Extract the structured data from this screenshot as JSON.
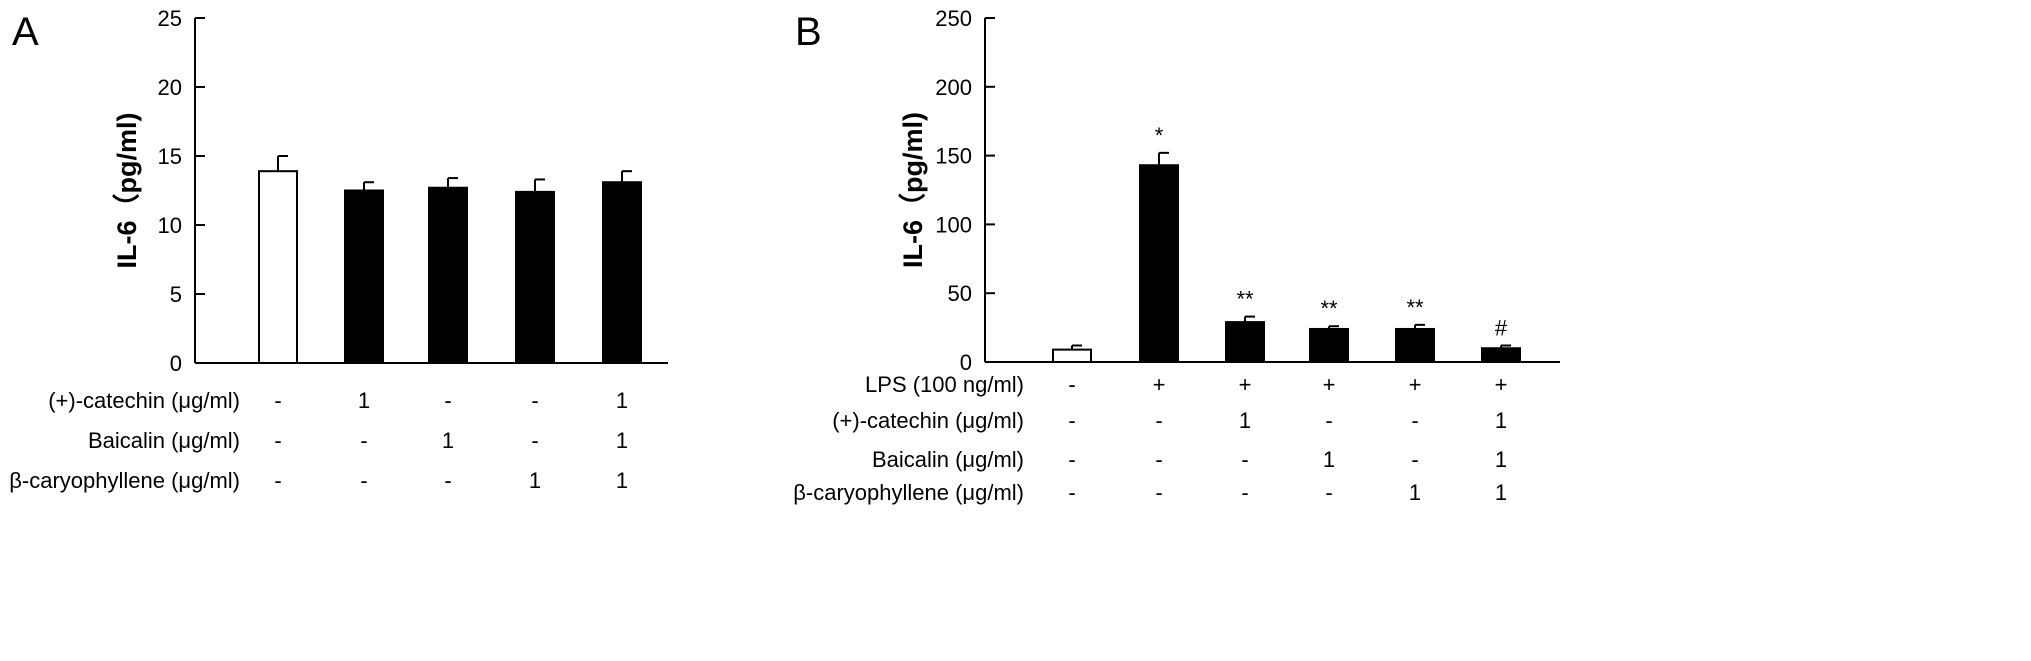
{
  "chart_data": [
    {
      "type": "bar",
      "panel_label": "A",
      "ylabel": "IL-6（pg/ml)",
      "ylim": [
        0,
        25
      ],
      "yticks": [
        0,
        5,
        10,
        15,
        20,
        25
      ],
      "values": [
        13.9,
        12.5,
        12.7,
        12.4,
        13.1
      ],
      "errors": [
        1.1,
        0.6,
        0.7,
        0.9,
        0.8
      ],
      "fills": [
        "#ffffff",
        "#000000",
        "#000000",
        "#000000",
        "#000000"
      ],
      "significance": [
        "",
        "",
        "",
        "",
        ""
      ],
      "conditions": [
        {
          "label": "(+)-catechin (μg/ml)",
          "values": [
            "-",
            "1",
            "-",
            "-",
            "1"
          ]
        },
        {
          "label": "Baicalin (μg/ml)",
          "values": [
            "-",
            "-",
            "1",
            "-",
            "1"
          ]
        },
        {
          "label": "β-caryophyllene (μg/ml)",
          "values": [
            "-",
            "-",
            "-",
            "1",
            "1"
          ]
        }
      ]
    },
    {
      "type": "bar",
      "panel_label": "B",
      "ylabel": "IL-6（pg/ml)",
      "ylim": [
        0,
        250
      ],
      "yticks": [
        0,
        50,
        100,
        150,
        200,
        250
      ],
      "values": [
        9,
        143,
        29,
        24,
        24,
        10
      ],
      "errors": [
        3,
        9,
        4,
        2,
        3,
        2
      ],
      "fills": [
        "#ffffff",
        "#000000",
        "#000000",
        "#000000",
        "#000000",
        "#000000"
      ],
      "significance": [
        "",
        "*",
        "**",
        "**",
        "**",
        "#"
      ],
      "conditions": [
        {
          "label": "LPS (100 ng/ml)",
          "values": [
            "-",
            "+",
            "+",
            "+",
            "+",
            "+"
          ]
        },
        {
          "label": "(+)-catechin (μg/ml)",
          "values": [
            "-",
            "-",
            "1",
            "-",
            "-",
            "1"
          ]
        },
        {
          "label": "Baicalin (μg/ml)",
          "values": [
            "-",
            "-",
            "-",
            "1",
            "-",
            "1"
          ]
        },
        {
          "label": "β-caryophyllene (μg/ml)",
          "values": [
            "-",
            "-",
            "-",
            "-",
            "1",
            "1"
          ]
        }
      ]
    }
  ]
}
